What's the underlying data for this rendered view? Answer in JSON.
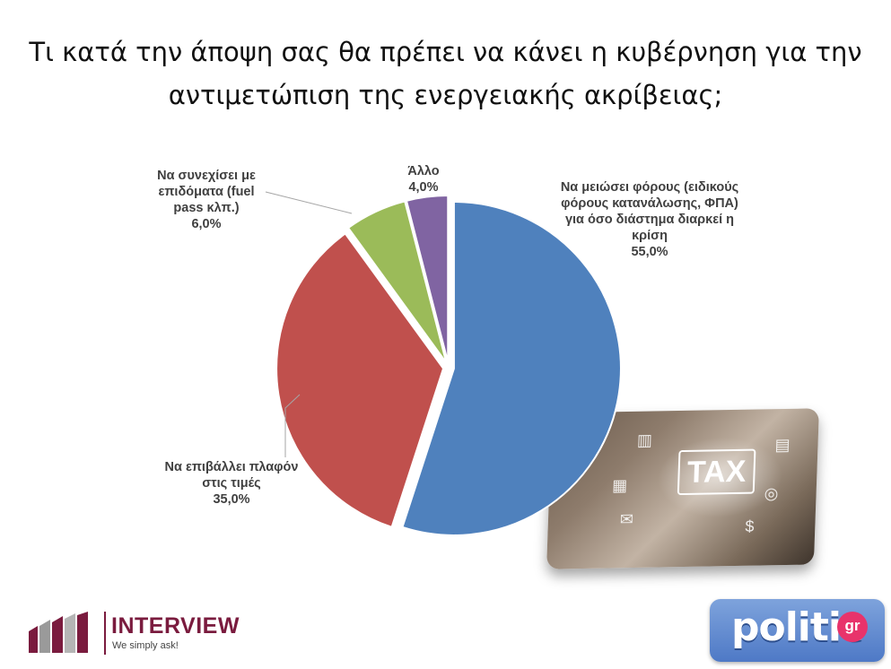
{
  "title": {
    "line1": "Τι κατά την άποψη σας θα πρέπει να κάνει η κυβέρνηση για την",
    "line2": "αντιμετώπιση της ενεργειακής ακρίβειας;"
  },
  "chart_data": {
    "type": "pie",
    "start_angle_deg": 0,
    "direction": "clockwise",
    "slices": [
      {
        "label_lines": [
          "Να μειώσει φόρους (ειδικούς",
          "φόρους κατανάλωσης, ΦΠΑ)",
          "για όσο διάστημα διαρκεί η",
          "κρίση"
        ],
        "value": 55.0,
        "value_label": "55,0%",
        "color": "#4f81bd"
      },
      {
        "label_lines": [
          "Να επιβάλλει πλαφόν",
          "στις τιμές"
        ],
        "value": 35.0,
        "value_label": "35,0%",
        "color": "#c0504d"
      },
      {
        "label_lines": [
          "Να συνεχίσει με",
          "επιδόματα (fuel",
          "pass κλπ.)"
        ],
        "value": 6.0,
        "value_label": "6,0%",
        "color": "#9bbb59"
      },
      {
        "label_lines": [
          "Άλλο"
        ],
        "value": 4.0,
        "value_label": "4,0%",
        "color": "#8064a2"
      }
    ]
  },
  "photo": {
    "word": "TAX",
    "icons": [
      "bar-chart-icon",
      "document-icon",
      "calculator-icon",
      "target-icon",
      "mail-icon",
      "dollar-icon"
    ]
  },
  "logos": {
    "interview": {
      "name": "INTERVIEW",
      "tagline": "We simply ask!",
      "color": "#7a1b3e"
    },
    "politic": {
      "name": "politic",
      "suffix": "gr"
    }
  }
}
